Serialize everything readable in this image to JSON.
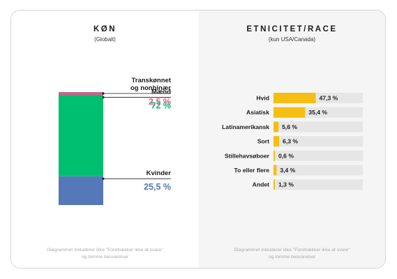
{
  "gender": {
    "title": "KØN",
    "subtitle": "(Globalt)",
    "footnote": [
      "Diagrammet inkluderer ikke \"Foretrækker ikke at svare\"",
      "og tomme besvarelser"
    ]
  },
  "ethnicity": {
    "title": "ETNICITET/RACE",
    "subtitle": "(kun USA/Canada)",
    "footnote": [
      "Diagrammet inkluderer ikke \"Foretrækker ikke at svare\"",
      "og tomme besvarelser"
    ]
  },
  "chart_data": [
    {
      "type": "bar",
      "stacked": true,
      "orientation": "vertical",
      "title": "KØN",
      "subtitle": "(Globalt)",
      "series": [
        {
          "name": "Kvinder",
          "value": 25.5,
          "value_label": "25,5 %",
          "color": "#5578b8"
        },
        {
          "name": "Mænd",
          "value": 72,
          "value_label": "72 %",
          "color": "#00bf6f"
        },
        {
          "name": "Transkønnet og nonbinær",
          "label_lines": [
            "Transkønnet",
            "og nonbinær"
          ],
          "value": 2.5,
          "value_label": "2,5 %",
          "color": "#d25f8e"
        }
      ],
      "ylim": [
        0,
        100
      ]
    },
    {
      "type": "bar",
      "orientation": "horizontal",
      "title": "ETNICITET/RACE",
      "subtitle": "(kun USA/Canada)",
      "categories": [
        "Hvid",
        "Asiatisk",
        "Latinamerikansk",
        "Sort",
        "Stillehavsøboer",
        "To eller flere",
        "Andet"
      ],
      "values": [
        47.3,
        35.4,
        5.6,
        6.3,
        0.6,
        3.4,
        1.3
      ],
      "value_labels": [
        "47,3 %",
        "35,4 %",
        "5,6 %",
        "6,3 %",
        "0,6 %",
        "3,4 %",
        "1,3 %"
      ],
      "xlim": [
        0,
        100
      ],
      "bar_color": "#f5be12",
      "track_color": "#e6e6e6"
    }
  ]
}
